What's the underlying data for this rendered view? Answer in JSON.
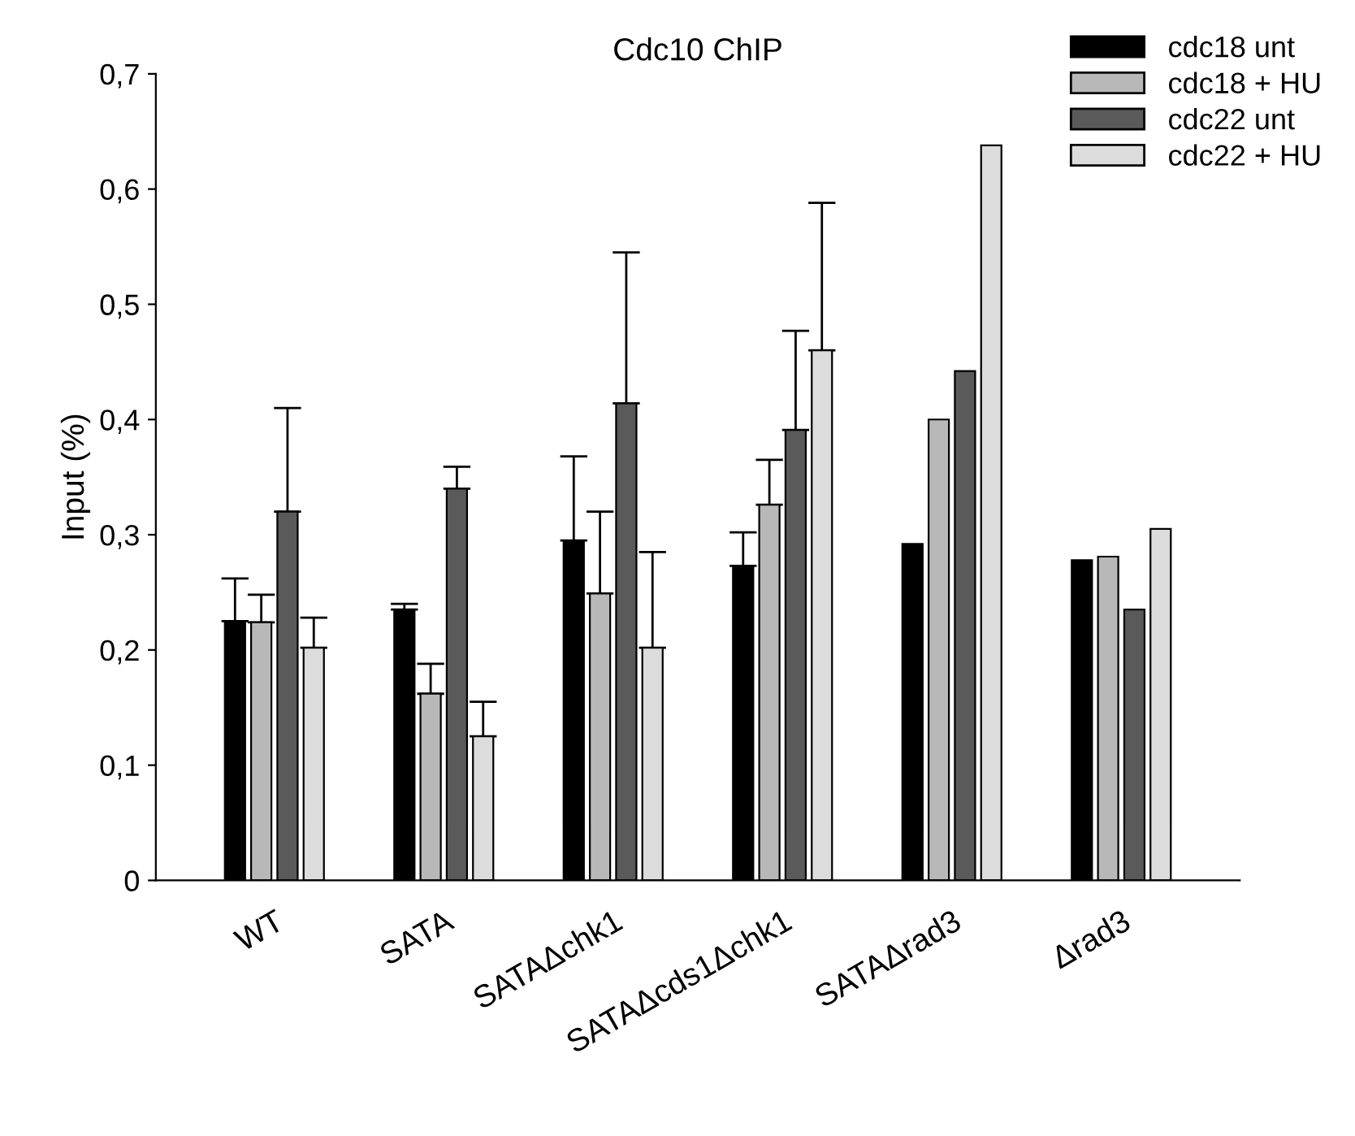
{
  "chart_data": {
    "type": "bar",
    "title": "Cdc10 ChIP",
    "ylabel": "Input (%)",
    "categories": [
      "WT",
      "SATA",
      "SATAΔchk1",
      "SATAΔcds1Δchk1",
      "SATAΔrad3",
      "Δrad3"
    ],
    "series": [
      {
        "name": "cdc18 unt",
        "color": "#000000",
        "values": [
          0.225,
          0.235,
          0.295,
          0.273,
          0.292,
          0.278
        ],
        "errors": [
          [
            0.225,
            0.262
          ],
          [
            0.235,
            0.24
          ],
          [
            0.295,
            0.368
          ],
          [
            0.273,
            0.302
          ],
          null,
          null
        ]
      },
      {
        "name": "cdc18 + HU",
        "color": "#b8b8b8",
        "values": [
          0.224,
          0.162,
          0.249,
          0.326,
          0.4,
          0.281
        ],
        "errors": [
          [
            0.224,
            0.248
          ],
          [
            0.162,
            0.188
          ],
          [
            0.249,
            0.32
          ],
          [
            0.326,
            0.365
          ],
          null,
          null
        ]
      },
      {
        "name": "cdc22 unt",
        "color": "#5a5a5a",
        "values": [
          0.32,
          0.34,
          0.414,
          0.391,
          0.442,
          0.235
        ],
        "errors": [
          [
            0.32,
            0.41
          ],
          [
            0.34,
            0.359
          ],
          [
            0.414,
            0.545
          ],
          [
            0.391,
            0.477
          ],
          null,
          null
        ]
      },
      {
        "name": "cdc22 + HU",
        "color": "#dcdcdc",
        "values": [
          0.202,
          0.125,
          0.202,
          0.46,
          0.638,
          0.305
        ],
        "errors": [
          [
            0.202,
            0.228
          ],
          [
            0.125,
            0.155
          ],
          [
            0.202,
            0.285
          ],
          [
            0.46,
            0.588
          ],
          null,
          null
        ]
      }
    ],
    "ylim": [
      0,
      0.7
    ],
    "yticks": [
      {
        "value": 0,
        "label": "0"
      },
      {
        "value": 0.1,
        "label": "0,1"
      },
      {
        "value": 0.2,
        "label": "0,2"
      },
      {
        "value": 0.3,
        "label": "0,3"
      },
      {
        "value": 0.4,
        "label": "0,4"
      },
      {
        "value": 0.5,
        "label": "0,5"
      },
      {
        "value": 0.6,
        "label": "0,6"
      },
      {
        "value": 0.7,
        "label": "0,7"
      }
    ],
    "legend": "top right",
    "grid": false
  }
}
